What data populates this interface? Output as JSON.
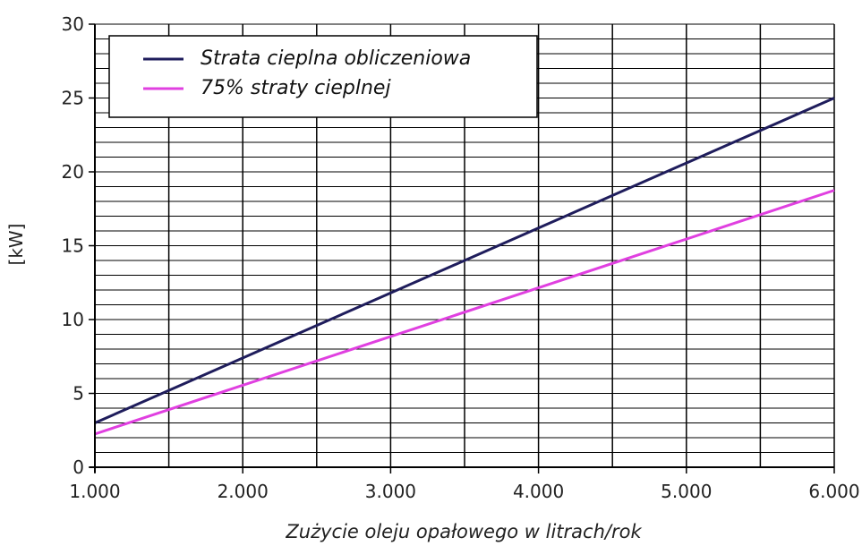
{
  "chart_data": {
    "type": "line",
    "x": [
      1000,
      6000
    ],
    "series": [
      {
        "name": "Strata cieplna obliczeniowa",
        "values": [
          3.0,
          25.0
        ],
        "color": "#1f1d5c"
      },
      {
        "name": "75% straty cieplnej",
        "values": [
          2.25,
          18.75
        ],
        "color": "#e040e0"
      }
    ],
    "title": "",
    "xlabel": "Zużycie oleju opałowego w litrach/rok",
    "ylabel": "[kW]",
    "xlim": [
      1000,
      6000
    ],
    "ylim": [
      0,
      30
    ],
    "x_ticks": [
      1000,
      2000,
      3000,
      4000,
      5000,
      6000
    ],
    "x_tick_labels": [
      "1.000",
      "2.000",
      "3.000",
      "4.000",
      "5.000",
      "6.000"
    ],
    "y_ticks": [
      0,
      5,
      10,
      15,
      20,
      25,
      30
    ],
    "y_tick_labels": [
      "0",
      "5",
      "10",
      "15",
      "20",
      "25",
      "30"
    ],
    "x_grid_step": 500,
    "y_grid_step": 1,
    "grid": true,
    "legend_position": "top-left"
  }
}
